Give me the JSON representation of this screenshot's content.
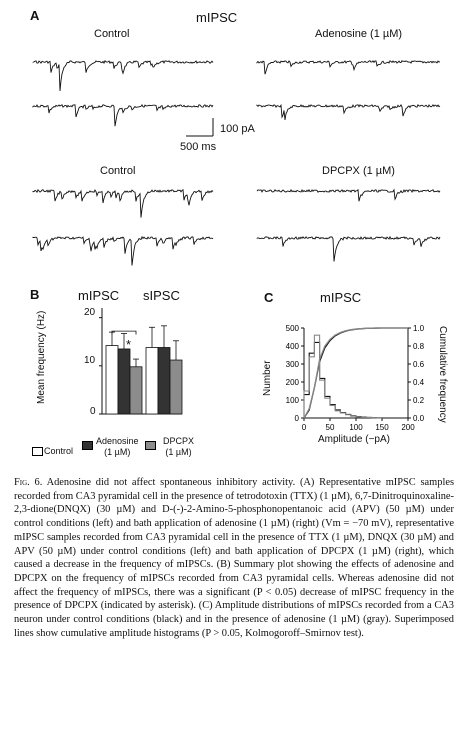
{
  "panel_a": {
    "letter": "A",
    "title": "mIPSC",
    "top_left_label": "Control",
    "top_right_label": "Adenosine (1 µM)",
    "bottom_left_label": "Control",
    "bottom_right_label": "DPCPX (1 µM)",
    "scale_y": "100 pA",
    "scale_x": "500 ms"
  },
  "panel_b": {
    "letter": "B",
    "group1": "mIPSC",
    "group2": "sIPSC",
    "ylabel": "Mean frequency (Hz)",
    "yticks": [
      "0",
      "10",
      "20"
    ],
    "star": "*",
    "legend": [
      {
        "label": "Control",
        "color": "#ffffff"
      },
      {
        "label": "Adenosine\n(1 µM)",
        "color": "#333333"
      },
      {
        "label": "DPCPX\n(1 µM)",
        "color": "#8c8c8c"
      }
    ]
  },
  "panel_c": {
    "letter": "C",
    "title": "mIPSC",
    "ylabel_left": "Number",
    "ylabel_right": "Cumulative frequency",
    "xlabel": "Amplitude (−pA)",
    "yticks_left": [
      "0",
      "100",
      "200",
      "300",
      "400",
      "500"
    ],
    "yticks_right": [
      "0.0",
      "0.2",
      "0.4",
      "0.6",
      "0.8",
      "1.0"
    ],
    "xticks": [
      "0",
      "50",
      "100",
      "150",
      "200"
    ]
  },
  "chart_data": [
    {
      "type": "bar",
      "categories": [
        "mIPSC",
        "sIPSC"
      ],
      "series": [
        {
          "name": "Control",
          "values": [
            14.2,
            13.8
          ],
          "err": [
            2.8,
            4.2
          ]
        },
        {
          "name": "Adenosine (1 µM)",
          "values": [
            13.5,
            13.8
          ],
          "err": [
            3.2,
            4.5
          ]
        },
        {
          "name": "DPCPX (1 µM)",
          "values": [
            9.8,
            11.2
          ],
          "err": [
            1.6,
            4.0
          ]
        }
      ],
      "ylabel": "Mean frequency (Hz)",
      "ylim": [
        0,
        22
      ],
      "annotation": "*"
    },
    {
      "type": "bar",
      "x": [
        10,
        20,
        30,
        40,
        50,
        60,
        70,
        80,
        90,
        100,
        110,
        120,
        130,
        140,
        150
      ],
      "series": [
        {
          "name": "Control",
          "values": [
            130,
            360,
            420,
            220,
            120,
            75,
            45,
            30,
            20,
            12,
            8,
            5,
            3,
            2,
            1
          ]
        },
        {
          "name": "Adenosine (1 µM)",
          "values": [
            150,
            340,
            460,
            210,
            110,
            70,
            40,
            28,
            18,
            10,
            7,
            4,
            3,
            2,
            1
          ]
        }
      ],
      "ylabel": "Number",
      "xlabel": "Amplitude (−pA)",
      "ylim": [
        0,
        500
      ],
      "xlim": [
        0,
        200
      ],
      "cumulative_ylim": [
        0,
        1.0
      ]
    }
  ],
  "caption": {
    "fig_label": "Fig. 6.",
    "text": "Adenosine did not affect spontaneous inhibitory activity. (A) Representative mIPSC samples recorded from CA3 pyramidal cell in the presence of tetrodotoxin (TTX) (1 µM), 6,7-Dinitroquinoxaline-2,3-dione(DNQX) (30 µM) and D-(-)-2-Amino-5-phosphonopentanoic acid (APV) (50 µM) under control conditions (left) and bath application of adenosine (1 µM) (right) (Vm = −70 mV), representative mIPSC samples recorded from CA3 pyramidal cell in the presence of TTX (1 µM), DNQX (30 µM) and APV (50 µM) under control conditions (left) and bath application of DPCPX (1 µM) (right), which caused a decrease in the frequency of mIPSCs. (B) Summary plot showing the effects of adenosine and DPCPX on the frequency of mIPSCs recorded from CA3 pyramidal cells. Whereas adenosine did not affect the frequency of mIPSCs, there was a significant (P < 0.05) decrease of mIPSC frequency in the presence of DPCPX (indicated by asterisk). (C) Amplitude distributions of mIPSCs recorded from a CA3 neuron under control conditions (black) and in the presence of adenosine (1 µM) (gray). Superimposed lines show cumulative amplitude histograms (P > 0.05, Kolmogoroff–Smirnov test)."
  }
}
